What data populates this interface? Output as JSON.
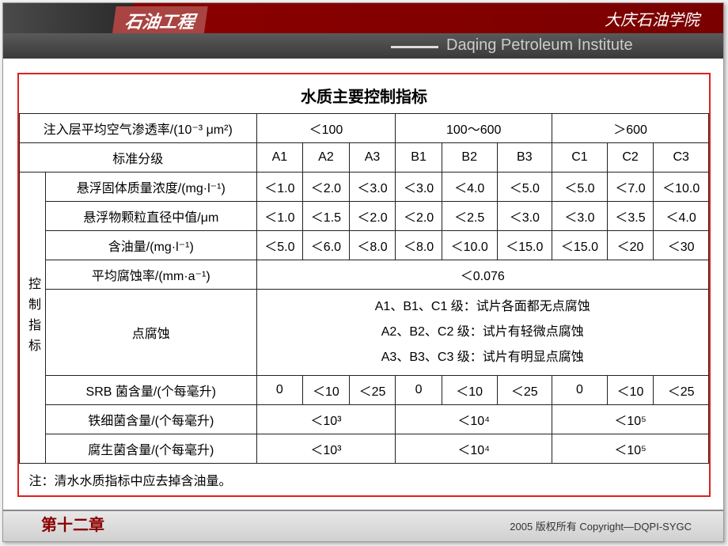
{
  "header": {
    "banner": "石油工程",
    "university_cn": "大庆石油学院",
    "university_en": "Daqing Petroleum Institute"
  },
  "table": {
    "title": "水质主要控制指标",
    "row_perm_label": "注入层平均空气渗透率/(10⁻³ μm²)",
    "perm_ranges": [
      "＜100",
      "100～600",
      "＞600"
    ],
    "grade_label": "标准分级",
    "grades": [
      "A1",
      "A2",
      "A3",
      "B1",
      "B2",
      "B3",
      "C1",
      "C2",
      "C3"
    ],
    "vertical_label": "控制指标",
    "rows": [
      {
        "label": "悬浮固体质量浓度/(mg·l⁻¹)",
        "vals": [
          "＜1.0",
          "＜2.0",
          "＜3.0",
          "＜3.0",
          "＜4.0",
          "＜5.0",
          "＜5.0",
          "＜7.0",
          "＜10.0"
        ]
      },
      {
        "label": "悬浮物颗粒直径中值/μm",
        "vals": [
          "＜1.0",
          "＜1.5",
          "＜2.0",
          "＜2.0",
          "＜2.5",
          "＜3.0",
          "＜3.0",
          "＜3.5",
          "＜4.0"
        ]
      },
      {
        "label": "含油量/(mg·l⁻¹)",
        "vals": [
          "＜5.0",
          "＜6.0",
          "＜8.0",
          "＜8.0",
          "＜10.0",
          "＜15.0",
          "＜15.0",
          "＜20",
          "＜30"
        ]
      }
    ],
    "corrosion_rate_label": "平均腐蚀率/(mm·a⁻¹)",
    "corrosion_rate_value": "＜0.076",
    "point_corrosion_label": "点腐蚀",
    "point_corrosion_lines": [
      "A1、B1、C1 级：试片各面都无点腐蚀",
      "A2、B2、C2 级：试片有轻微点腐蚀",
      "A3、B3、C3 级：试片有明显点腐蚀"
    ],
    "srb_label": "SRB 菌含量/(个每毫升)",
    "srb_vals": [
      "0",
      "＜10",
      "＜25",
      "0",
      "＜10",
      "＜25",
      "0",
      "＜10",
      "＜25"
    ],
    "iron_label": "铁细菌含量/(个每毫升)",
    "iron_vals": [
      "＜10³",
      "＜10⁴",
      "＜10⁵"
    ],
    "sapro_label": "腐生菌含量/(个每毫升)",
    "sapro_vals": [
      "＜10³",
      "＜10⁴",
      "＜10⁵"
    ],
    "note": "注：清水水质指标中应去掉含油量。"
  },
  "footer": {
    "chapter": "第十二章",
    "copyright": "2005  版权所有    Copyright—DQPI-SYGC"
  },
  "colors": {
    "accent_red": "#8b0000",
    "frame_red": "#e02020"
  }
}
